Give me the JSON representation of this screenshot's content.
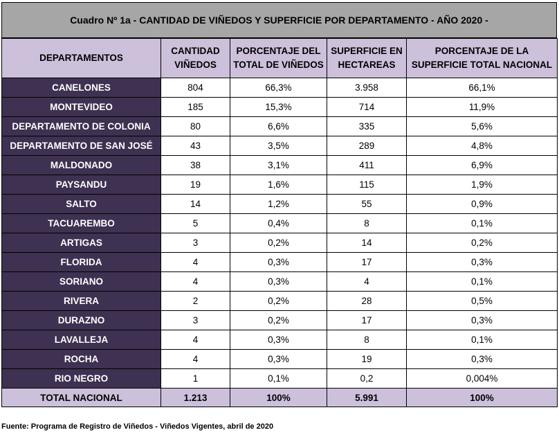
{
  "title": "Cuadro Nº 1a - CANTIDAD DE VIÑEDOS Y SUPERFICIE POR DEPARTAMENTO - AÑO 2020 -",
  "headers": {
    "departamentos": "DEPARTAMENTOS",
    "cantidad_l1": "CANTIDAD",
    "cantidad_l2": "VIÑEDOS",
    "pct_vinedos_l1": "PORCENTAJE DEL",
    "pct_vinedos_l2": "TOTAL DE VIÑEDOS",
    "superficie_l1": "SUPERFICIE EN",
    "superficie_l2": "HECTAREAS",
    "pct_superficie_l1": "PORCENTAJE DE LA",
    "pct_superficie_l2": "SUPERFICIE TOTAL NACIONAL"
  },
  "rows": [
    {
      "dept": "CANELONES",
      "cantidad": "804",
      "pct_vinedos": "66,3%",
      "superficie": "3.958",
      "pct_superficie": "66,1%"
    },
    {
      "dept": "MONTEVIDEO",
      "cantidad": "185",
      "pct_vinedos": "15,3%",
      "superficie": "714",
      "pct_superficie": "11,9%"
    },
    {
      "dept": "DEPARTAMENTO DE COLONIA",
      "cantidad": "80",
      "pct_vinedos": "6,6%",
      "superficie": "335",
      "pct_superficie": "5,6%"
    },
    {
      "dept": "DEPARTAMENTO DE SAN JOSÉ",
      "cantidad": "43",
      "pct_vinedos": "3,5%",
      "superficie": "289",
      "pct_superficie": "4,8%"
    },
    {
      "dept": "MALDONADO",
      "cantidad": "38",
      "pct_vinedos": "3,1%",
      "superficie": "411",
      "pct_superficie": "6,9%"
    },
    {
      "dept": "PAYSANDU",
      "cantidad": "19",
      "pct_vinedos": "1,6%",
      "superficie": "115",
      "pct_superficie": "1,9%"
    },
    {
      "dept": "SALTO",
      "cantidad": "14",
      "pct_vinedos": "1,2%",
      "superficie": "55",
      "pct_superficie": "0,9%"
    },
    {
      "dept": "TACUAREMBO",
      "cantidad": "5",
      "pct_vinedos": "0,4%",
      "superficie": "8",
      "pct_superficie": "0,1%"
    },
    {
      "dept": "ARTIGAS",
      "cantidad": "3",
      "pct_vinedos": "0,2%",
      "superficie": "14",
      "pct_superficie": "0,2%"
    },
    {
      "dept": "FLORIDA",
      "cantidad": "4",
      "pct_vinedos": "0,3%",
      "superficie": "17",
      "pct_superficie": "0,3%"
    },
    {
      "dept": "SORIANO",
      "cantidad": "4",
      "pct_vinedos": "0,3%",
      "superficie": "4",
      "pct_superficie": "0,1%"
    },
    {
      "dept": "RIVERA",
      "cantidad": "2",
      "pct_vinedos": "0,2%",
      "superficie": "28",
      "pct_superficie": "0,5%"
    },
    {
      "dept": "DURAZNO",
      "cantidad": "3",
      "pct_vinedos": "0,2%",
      "superficie": "17",
      "pct_superficie": "0,3%"
    },
    {
      "dept": "LAVALLEJA",
      "cantidad": "4",
      "pct_vinedos": "0,3%",
      "superficie": "8",
      "pct_superficie": "0,1%"
    },
    {
      "dept": "ROCHA",
      "cantidad": "4",
      "pct_vinedos": "0,3%",
      "superficie": "19",
      "pct_superficie": "0,3%"
    },
    {
      "dept": "RIO NEGRO",
      "cantidad": "1",
      "pct_vinedos": "0,1%",
      "superficie": "0,2",
      "pct_superficie": "0,004%"
    }
  ],
  "total": {
    "dept": "TOTAL NACIONAL",
    "cantidad": "1.213",
    "pct_vinedos": "100%",
    "superficie": "5.991",
    "pct_superficie": "100%"
  },
  "source": "Fuente: Programa de Registro de Viñedos - Viñedos Vigentes, abril de 2020",
  "colors": {
    "caption_bg": "#a6a6a6",
    "header_bg": "#ccc0da",
    "dept_bg": "#3f3151",
    "dept_text": "#ffffff"
  }
}
